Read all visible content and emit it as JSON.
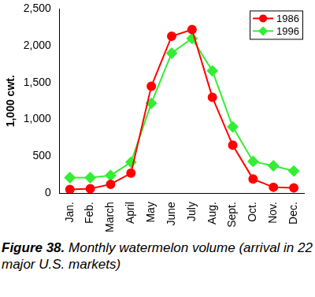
{
  "chart_data": {
    "type": "line",
    "title": "Figure 38.",
    "subtitle": "Monthly watermelon volume (arrival in 22 major U.S. markets)",
    "y_label": "1,000 cwt.",
    "categories": [
      "Jan.",
      "Feb.",
      "March",
      "April",
      "May",
      "June",
      "July",
      "Aug.",
      "Sept.",
      "Oct.",
      "Nov.",
      "Dec."
    ],
    "series": [
      {
        "name": "1986",
        "color": "#ff0000",
        "marker": "circle",
        "line_style": "solid",
        "values": [
          50,
          60,
          120,
          270,
          1450,
          2130,
          2220,
          1300,
          650,
          190,
          80,
          70
        ]
      },
      {
        "name": "1996",
        "color": "#33ee33",
        "marker": "diamond",
        "line_style": "solid",
        "values": [
          210,
          210,
          240,
          420,
          1220,
          1900,
          2100,
          1660,
          900,
          430,
          370,
          300
        ]
      }
    ],
    "ylim": [
      0,
      2500
    ],
    "yticks": [
      0,
      500,
      {
        "value": 1000,
        "label": "1,000"
      },
      {
        "value": 1500,
        "label": "1,500"
      },
      {
        "value": 2000,
        "label": "2,000"
      },
      {
        "value": 2500,
        "label": "2,500"
      }
    ],
    "grid": false,
    "legend": "upper right"
  }
}
